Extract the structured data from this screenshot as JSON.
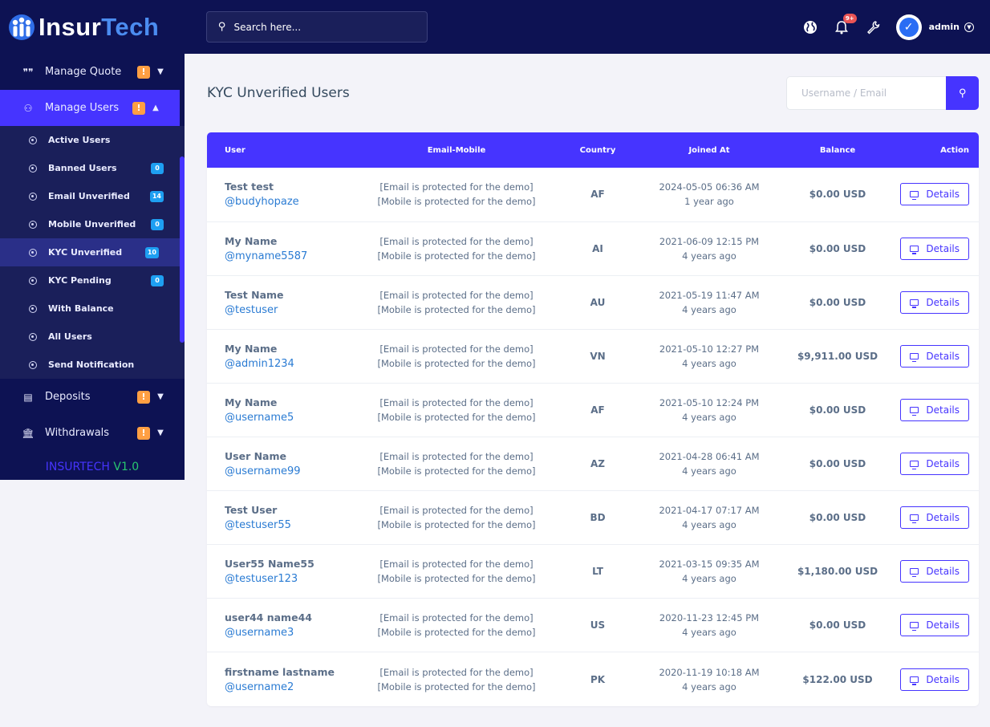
{
  "brand": {
    "logo_main": "Insur",
    "logo_accent": "Tech",
    "version_brand": "INSURTECH",
    "version_num": "V1.0"
  },
  "sidebar": {
    "manage_quote": "Manage Quote",
    "manage_users": "Manage Users",
    "deposits": "Deposits",
    "withdrawals": "Withdrawals",
    "warn_badge": "!",
    "sub_items": [
      {
        "label": "Active Users",
        "count": ""
      },
      {
        "label": "Banned Users",
        "count": "0"
      },
      {
        "label": "Email Unverified",
        "count": "14"
      },
      {
        "label": "Mobile Unverified",
        "count": "0"
      },
      {
        "label": "KYC Unverified",
        "count": "10"
      },
      {
        "label": "KYC Pending",
        "count": "0"
      },
      {
        "label": "With Balance",
        "count": ""
      },
      {
        "label": "All Users",
        "count": ""
      },
      {
        "label": "Send Notification",
        "count": ""
      }
    ]
  },
  "topbar": {
    "search_placeholder": "Search here...",
    "notification_count": "9+",
    "admin_label": "admin"
  },
  "main": {
    "page_title": "KYC Unverified Users",
    "filter_placeholder": "Username / Email"
  },
  "table": {
    "headers": {
      "user": "User",
      "email_mobile": "Email-Mobile",
      "country": "Country",
      "joined": "Joined At",
      "balance": "Balance",
      "action": "Action"
    },
    "details_label": "Details",
    "rows": [
      {
        "name": "Test test",
        "handle": "@budyhopaze",
        "email": "[Email is protected for the demo]",
        "mobile": "[Mobile is protected for the demo]",
        "country": "AF",
        "joined": "2024-05-05 06:36 AM",
        "ago": "1 year ago",
        "balance": "$0.00 USD"
      },
      {
        "name": "My Name",
        "handle": "@myname5587",
        "email": "[Email is protected for the demo]",
        "mobile": "[Mobile is protected for the demo]",
        "country": "AI",
        "joined": "2021-06-09 12:15 PM",
        "ago": "4 years ago",
        "balance": "$0.00 USD"
      },
      {
        "name": "Test Name",
        "handle": "@testuser",
        "email": "[Email is protected for the demo]",
        "mobile": "[Mobile is protected for the demo]",
        "country": "AU",
        "joined": "2021-05-19 11:47 AM",
        "ago": "4 years ago",
        "balance": "$0.00 USD"
      },
      {
        "name": "My Name",
        "handle": "@admin1234",
        "email": "[Email is protected for the demo]",
        "mobile": "[Mobile is protected for the demo]",
        "country": "VN",
        "joined": "2021-05-10 12:27 PM",
        "ago": "4 years ago",
        "balance": "$9,911.00 USD"
      },
      {
        "name": "My Name",
        "handle": "@username5",
        "email": "[Email is protected for the demo]",
        "mobile": "[Mobile is protected for the demo]",
        "country": "AF",
        "joined": "2021-05-10 12:24 PM",
        "ago": "4 years ago",
        "balance": "$0.00 USD"
      },
      {
        "name": "User Name",
        "handle": "@username99",
        "email": "[Email is protected for the demo]",
        "mobile": "[Mobile is protected for the demo]",
        "country": "AZ",
        "joined": "2021-04-28 06:41 AM",
        "ago": "4 years ago",
        "balance": "$0.00 USD"
      },
      {
        "name": "Test User",
        "handle": "@testuser55",
        "email": "[Email is protected for the demo]",
        "mobile": "[Mobile is protected for the demo]",
        "country": "BD",
        "joined": "2021-04-17 07:17 AM",
        "ago": "4 years ago",
        "balance": "$0.00 USD"
      },
      {
        "name": "User55 Name55",
        "handle": "@testuser123",
        "email": "[Email is protected for the demo]",
        "mobile": "[Mobile is protected for the demo]",
        "country": "LT",
        "joined": "2021-03-15 09:35 AM",
        "ago": "4 years ago",
        "balance": "$1,180.00 USD"
      },
      {
        "name": "user44 name44",
        "handle": "@username3",
        "email": "[Email is protected for the demo]",
        "mobile": "[Mobile is protected for the demo]",
        "country": "US",
        "joined": "2020-11-23 12:45 PM",
        "ago": "4 years ago",
        "balance": "$0.00 USD"
      },
      {
        "name": "firstname lastname",
        "handle": "@username2",
        "email": "[Email is protected for the demo]",
        "mobile": "[Mobile is protected for the demo]",
        "country": "PK",
        "joined": "2020-11-19 10:18 AM",
        "ago": "4 years ago",
        "balance": "$122.00 USD"
      }
    ]
  },
  "icons": {
    "quote": "quote-icon",
    "users": "users-icon",
    "deposits": "deposit-icon",
    "withdrawals": "bank-icon",
    "globe": "globe-icon",
    "bell": "bell-icon",
    "wrench": "wrench-icon",
    "search": "search-icon",
    "details": "monitor-icon"
  },
  "colors": {
    "sidebar_bg": "#0d1253",
    "accent": "#4634ff",
    "warn": "#ff9f43",
    "info": "#1e9ff2",
    "link": "#2a7bd3",
    "version_green": "#28c76f"
  }
}
